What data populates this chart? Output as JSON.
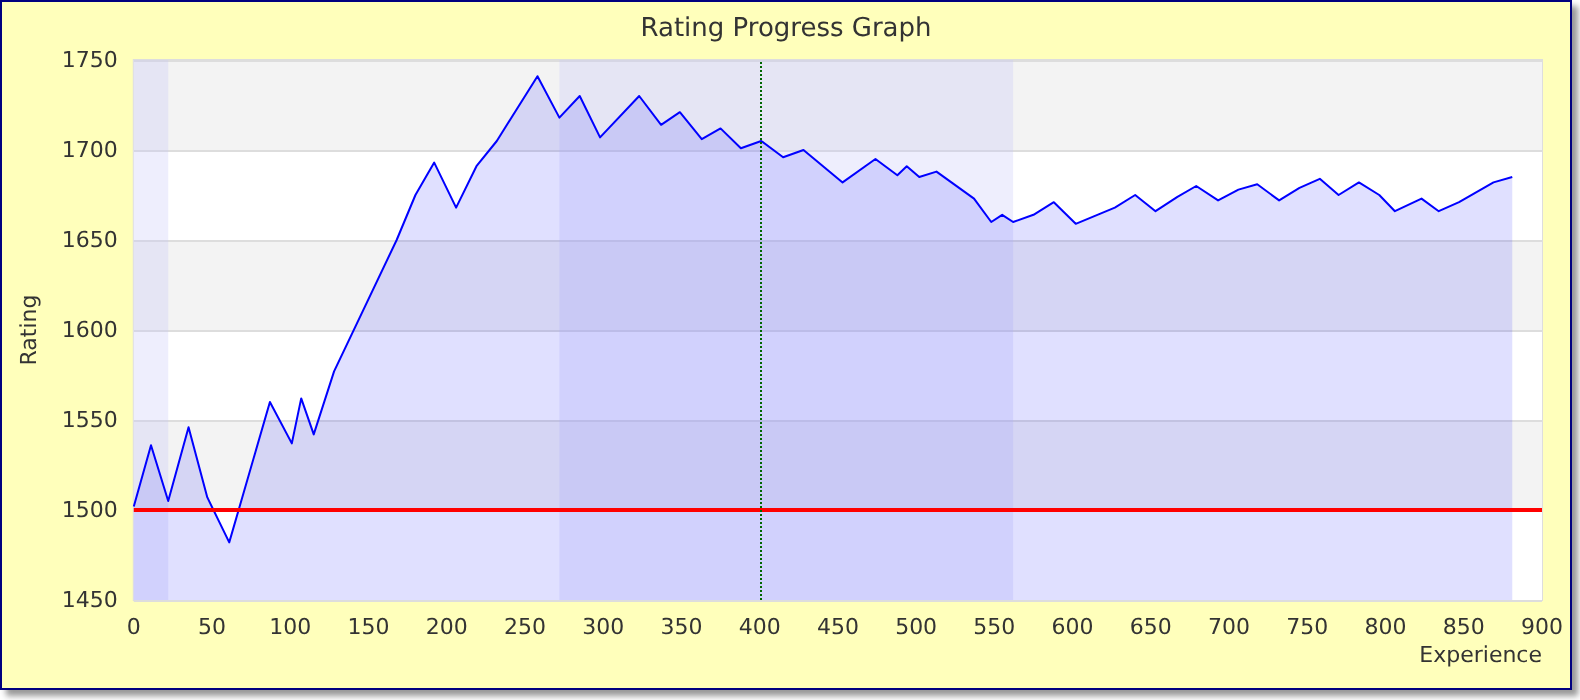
{
  "chart_data": {
    "type": "area",
    "title": "Rating Progress Graph",
    "xlabel": "Experience",
    "ylabel": "Rating",
    "xlim": [
      0,
      900
    ],
    "xticks": [
      0,
      50,
      100,
      150,
      200,
      250,
      300,
      350,
      400,
      450,
      500,
      550,
      600,
      650,
      700,
      750,
      800,
      850,
      900
    ],
    "ylim": [
      1450,
      1750
    ],
    "yticks": [
      1450,
      1500,
      1550,
      1600,
      1650,
      1700,
      1750
    ],
    "grid": "y",
    "marker": "none",
    "line_style": "solid",
    "series": [
      {
        "color": "#0000ff",
        "x": [
          0,
          11,
          22,
          35,
          47,
          61,
          87,
          101,
          107,
          115,
          128,
          168,
          180,
          192,
          206,
          219,
          232,
          258,
          272,
          285,
          298,
          323,
          337,
          349,
          363,
          375,
          388,
          401,
          415,
          428,
          453,
          474,
          488,
          494,
          502,
          513,
          537,
          548,
          555,
          562,
          575,
          588,
          602,
          627,
          640,
          653,
          667,
          679,
          693,
          706,
          718,
          732,
          745,
          758,
          770,
          783,
          796,
          806,
          823,
          834,
          847,
          869,
          881
        ],
        "values": [
          1502,
          1536,
          1505,
          1546,
          1507,
          1482,
          1560,
          1537,
          1562,
          1542,
          1577,
          1650,
          1675,
          1693,
          1668,
          1691,
          1705,
          1741,
          1718,
          1730,
          1707,
          1730,
          1714,
          1721,
          1706,
          1712,
          1701,
          1705,
          1696,
          1700,
          1682,
          1695,
          1686,
          1691,
          1685,
          1688,
          1673,
          1660,
          1664,
          1660,
          1664,
          1671,
          1659,
          1668,
          1675,
          1666,
          1674,
          1680,
          1672,
          1678,
          1681,
          1672,
          1679,
          1684,
          1675,
          1682,
          1675,
          1666,
          1673,
          1666,
          1671,
          1682,
          1685
        ]
      }
    ],
    "ref_lines": [
      {
        "axis": "y",
        "value": 1500,
        "color": "#ff0000",
        "line_style": "solid"
      },
      {
        "axis": "x",
        "value": 400,
        "color": "#006600",
        "line_style": "dotted"
      }
    ],
    "bands": [
      {
        "axis": "x",
        "from": 0,
        "to": 22,
        "color": "#c8c8fa"
      },
      {
        "axis": "x",
        "from": 272,
        "to": 562,
        "color": "#c8c8fa"
      }
    ]
  }
}
